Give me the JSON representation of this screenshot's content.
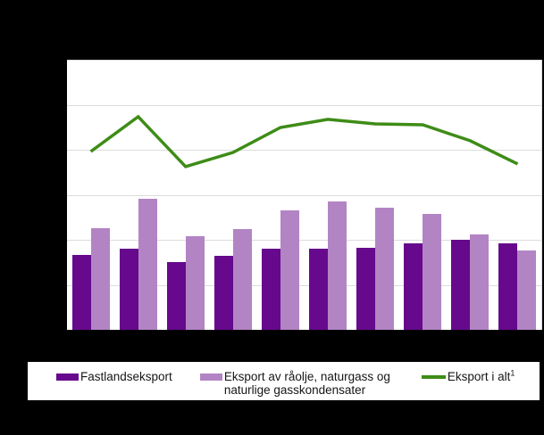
{
  "legend": {
    "items": [
      {
        "label": "Fastlandseksport",
        "swatch": "bar",
        "color": "#66098c"
      },
      {
        "label_line1": "Eksport av råolje, naturgass og",
        "label_line2": "naturlige gasskondensater",
        "swatch": "bar",
        "color": "#b384c4"
      },
      {
        "label": "Eksport i alt",
        "footnote_marker": "1",
        "swatch": "line",
        "color": "#3e8c17"
      }
    ]
  },
  "chart_data": {
    "type": "bar",
    "subtype": "grouped-bars-with-line-overlay",
    "title": "",
    "xlabel": "",
    "ylabel": "",
    "categories": [
      "",
      "",
      "",
      "",
      "",
      "",
      "",
      "",
      "",
      ""
    ],
    "series": [
      {
        "name": "Fastlandseksport",
        "kind": "bar",
        "color": "#66098c",
        "values": [
          33.3,
          36.0,
          30.1,
          32.9,
          36.0,
          36.0,
          36.4,
          38.4,
          40.0,
          38.4
        ]
      },
      {
        "name": "Eksport av råolje, naturgass og naturlige gasskondensater",
        "kind": "bar",
        "color": "#b384c4",
        "values": [
          45.1,
          58.2,
          41.6,
          44.8,
          53.1,
          57.0,
          54.3,
          51.5,
          42.4,
          35.2
        ]
      },
      {
        "name": "Eksport i alt",
        "kind": "line",
        "color": "#3e8c17",
        "values": [
          79.2,
          94.7,
          72.5,
          78.8,
          89.9,
          93.5,
          91.5,
          91.1,
          84.0,
          73.7
        ]
      }
    ],
    "ylim": [
      0,
      120
    ],
    "gridline_step": 20,
    "grid": "horizontal",
    "legend_position": "bottom"
  },
  "colors": {
    "page_background": "#000000",
    "plot_background": "#ffffff",
    "legend_background": "#ffffff",
    "gridline": "#dcdcdc",
    "legend_text": "#161616"
  }
}
